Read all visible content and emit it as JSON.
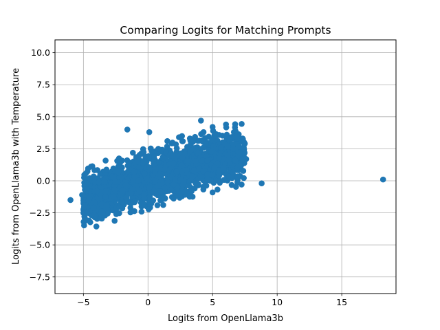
{
  "chart_data": {
    "type": "scatter",
    "title": "Comparing Logits for Matching Prompts",
    "xlabel": "Logits from OpenLlama3b",
    "ylabel": "Logits from OpenLlama3b with Temperature",
    "xlim": [
      -7.2,
      19.2
    ],
    "ylim": [
      -8.8,
      11.0
    ],
    "grid": true,
    "color": "#1f77b4",
    "x_ticks": [
      -5,
      0,
      5,
      10,
      15
    ],
    "x_tick_labels": [
      "−5",
      "0",
      "5",
      "10",
      "15"
    ],
    "y_ticks": [
      -7.5,
      -5.0,
      -2.5,
      0.0,
      2.5,
      5.0,
      7.5,
      10.0
    ],
    "y_tick_labels": [
      "−7.5",
      "−5.0",
      "−2.5",
      "0.0",
      "2.5",
      "5.0",
      "7.5",
      "10.0"
    ],
    "cluster": {
      "description": "dense band of points",
      "x_range": [
        -5,
        7.5
      ],
      "trend_slope": 0.3,
      "trend_intercept": 0.1
    },
    "points": [
      {
        "x": -6.0,
        "y": -1.5
      },
      {
        "x": -5.1,
        "y": -1.1
      },
      {
        "x": -5.0,
        "y": -2.5
      },
      {
        "x": -4.7,
        "y": -2.5
      },
      {
        "x": -4.9,
        "y": -1.9
      },
      {
        "x": -4.6,
        "y": -1.5
      },
      {
        "x": -4.2,
        "y": -2.1
      },
      {
        "x": -4.1,
        "y": -0.1
      },
      {
        "x": -3.8,
        "y": -0.1
      },
      {
        "x": -3.5,
        "y": -2.5
      },
      {
        "x": -3.6,
        "y": -2.4
      },
      {
        "x": -3.2,
        "y": -1.9
      },
      {
        "x": -2.4,
        "y": -2.5
      },
      {
        "x": -2.3,
        "y": 0.7
      },
      {
        "x": -1.6,
        "y": 4.0
      },
      {
        "x": -1.5,
        "y": 1.3
      },
      {
        "x": -0.5,
        "y": -2.0
      },
      {
        "x": -0.2,
        "y": 1.9
      },
      {
        "x": 0.1,
        "y": 3.8
      },
      {
        "x": 0.3,
        "y": 2.3
      },
      {
        "x": 0.8,
        "y": 2.5
      },
      {
        "x": 1.5,
        "y": 3.1
      },
      {
        "x": 1.3,
        "y": -1.4
      },
      {
        "x": 2.4,
        "y": 3.4
      },
      {
        "x": 2.9,
        "y": -0.8
      },
      {
        "x": 3.3,
        "y": 3.1
      },
      {
        "x": 4.1,
        "y": 4.7
      },
      {
        "x": 4.3,
        "y": 3.8
      },
      {
        "x": 4.6,
        "y": 0.5
      },
      {
        "x": 5.0,
        "y": 4.2
      },
      {
        "x": 5.0,
        "y": -0.9
      },
      {
        "x": 5.5,
        "y": 0.4
      },
      {
        "x": 6.1,
        "y": 3.6
      },
      {
        "x": 6.6,
        "y": 2.5
      },
      {
        "x": 6.9,
        "y": 3.4
      },
      {
        "x": 7.1,
        "y": 2.2
      },
      {
        "x": 7.6,
        "y": 1.7
      },
      {
        "x": 8.8,
        "y": -0.2
      },
      {
        "x": 18.2,
        "y": 0.1
      }
    ]
  }
}
